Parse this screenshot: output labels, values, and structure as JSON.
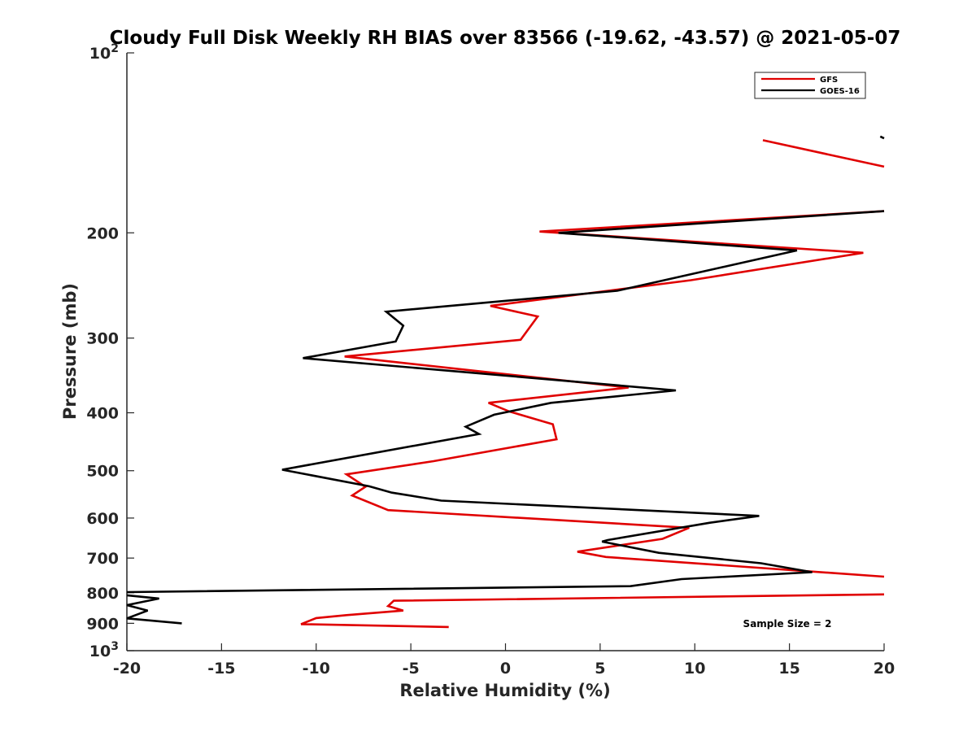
{
  "chart_data": {
    "type": "line",
    "title": "Cloudy Full Disk Weekly RH BIAS over 83566 (-19.62, -43.57) @ 2021-05-07",
    "xlabel": "Relative Humidity (%)",
    "ylabel": "Pressure (mb)",
    "xlim": [
      -20,
      20
    ],
    "ylim": [
      100,
      1000
    ],
    "y_scale": "log",
    "y_reversed": true,
    "grid": false,
    "legend_position": "top-right",
    "x_ticks": [
      "-20",
      "-15",
      "-10",
      "-5",
      "0",
      "5",
      "10",
      "15",
      "20"
    ],
    "y_ticks": [
      {
        "value": 200,
        "label": "200"
      },
      {
        "value": 300,
        "label": "300"
      },
      {
        "value": 400,
        "label": "400"
      },
      {
        "value": 500,
        "label": "500"
      },
      {
        "value": 600,
        "label": "600"
      },
      {
        "value": 700,
        "label": "700"
      },
      {
        "value": 800,
        "label": "800"
      },
      {
        "value": 900,
        "label": "900"
      }
    ],
    "y_tick_decades": [
      {
        "value": 100,
        "base": "10",
        "exp": "2"
      },
      {
        "value": 1000,
        "base": "10",
        "exp": "3"
      }
    ],
    "annotation": "Sample Size = 2",
    "series": [
      {
        "name": "GFS",
        "color": "#e00000",
        "segments": [
          [
            [
              13.6,
              140
            ],
            [
              20.0,
              155
            ]
          ],
          [
            [
              20.0,
              184
            ],
            [
              1.8,
              199
            ],
            [
              18.9,
              216
            ],
            [
              9.8,
              240
            ],
            [
              -0.8,
              265
            ],
            [
              1.7,
              276
            ],
            [
              0.8,
              302
            ],
            [
              -8.5,
              322
            ],
            [
              6.5,
              363
            ],
            [
              -0.9,
              385
            ],
            [
              0.2,
              398
            ],
            [
              2.5,
              418
            ],
            [
              2.7,
              443
            ],
            [
              -3.8,
              482
            ],
            [
              -8.4,
              507
            ],
            [
              -7.4,
              532
            ],
            [
              -8.1,
              550
            ],
            [
              -6.2,
              582
            ],
            [
              9.7,
              623
            ],
            [
              8.3,
              650
            ],
            [
              3.8,
              683
            ],
            [
              5.3,
              697
            ],
            [
              20.0,
              752
            ]
          ],
          [
            [
              20.0,
              805
            ],
            [
              -5.9,
              825
            ],
            [
              -6.2,
              842
            ],
            [
              -5.4,
              857
            ],
            [
              -8.4,
              872
            ],
            [
              -10.0,
              882
            ],
            [
              -10.8,
              903
            ],
            [
              -3.0,
              913
            ]
          ]
        ]
      },
      {
        "name": "GOES-16",
        "color": "#000000",
        "segments": [
          [
            [
              19.8,
              138
            ],
            [
              20.0,
              139
            ]
          ],
          [
            [
              20.0,
              184
            ],
            [
              2.8,
              200
            ],
            [
              15.4,
              214
            ],
            [
              5.9,
              250
            ],
            [
              -6.3,
              271
            ],
            [
              -5.4,
              286
            ],
            [
              -5.8,
              304
            ],
            [
              -10.7,
              324
            ],
            [
              9.0,
              367
            ],
            [
              2.4,
              385
            ],
            [
              -0.6,
              403
            ],
            [
              -2.1,
              422
            ],
            [
              -1.4,
              434
            ],
            [
              -11.8,
              498
            ],
            [
              -7.2,
              531
            ],
            [
              -6.0,
              544
            ],
            [
              -3.4,
              561
            ],
            [
              13.4,
              595
            ],
            [
              10.8,
              611
            ],
            [
              5.4,
              653
            ],
            [
              5.1,
              657
            ],
            [
              8.1,
              686
            ],
            [
              13.5,
              714
            ],
            [
              16.2,
              739
            ],
            [
              9.3,
              759
            ],
            [
              6.6,
              780
            ],
            [
              -20.0,
              798
            ]
          ],
          [
            [
              -20.0,
              808
            ],
            [
              -18.3,
              818
            ],
            [
              -20.0,
              839
            ],
            [
              -18.9,
              857
            ],
            [
              -20.0,
              883
            ],
            [
              -17.1,
              900
            ]
          ]
        ]
      }
    ]
  }
}
